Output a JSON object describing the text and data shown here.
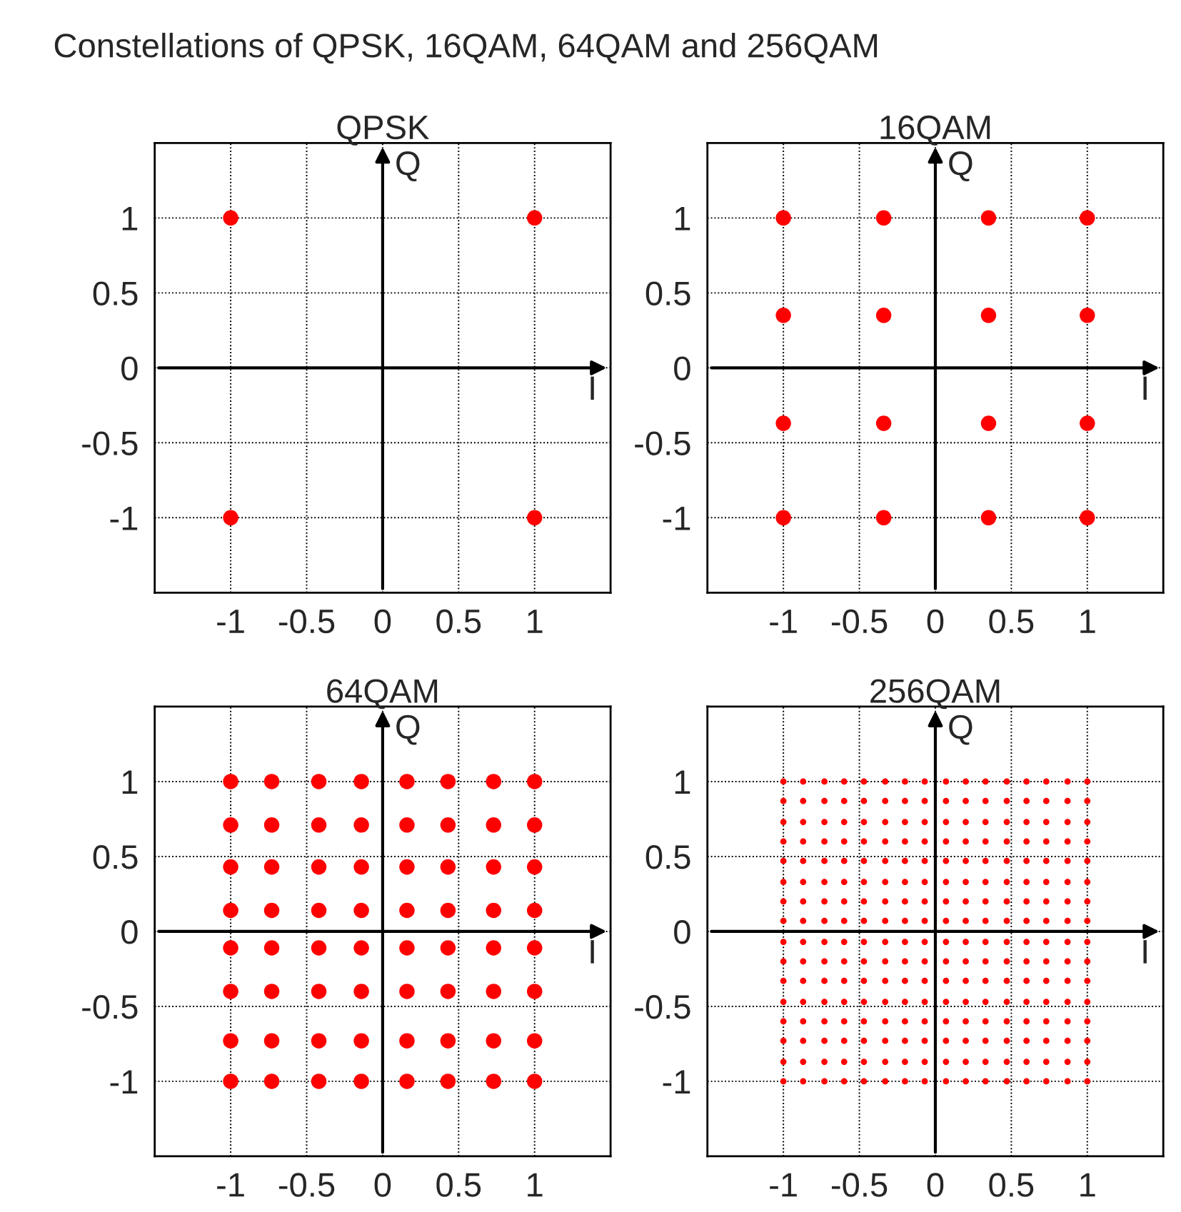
{
  "chart_data": [
    {
      "type": "scatter",
      "title": "QPSK",
      "xlabel": "I",
      "ylabel": "Q",
      "annotations": [
        "Constellations of QPSK, 16QAM, 64QAM and 256QAM"
      ],
      "xlim": [
        -1.5,
        1.5
      ],
      "ylim": [
        -1.5,
        1.5
      ],
      "xticks": [
        -1,
        -0.5,
        0,
        0.5,
        1
      ],
      "yticks": [
        -1,
        -0.5,
        0,
        0.5,
        1
      ],
      "grid": true,
      "marker": "circle",
      "series": [
        {
          "color": "#ff0000",
          "x": [
            -1,
            1,
            -1,
            1
          ],
          "values": [
            1,
            1,
            -1,
            -1
          ]
        }
      ]
    },
    {
      "type": "scatter",
      "title": "16QAM",
      "xlabel": "I",
      "ylabel": "Q",
      "xlim": [
        -1.5,
        1.5
      ],
      "ylim": [
        -1.5,
        1.5
      ],
      "xticks": [
        -1,
        -0.5,
        0,
        0.5,
        1
      ],
      "yticks": [
        -1,
        -0.5,
        0,
        0.5,
        1
      ],
      "grid": true,
      "marker": "circle",
      "series": [
        {
          "color": "#ff0000",
          "x": [
            -1,
            -0.34,
            0.35,
            1,
            -1,
            -0.34,
            0.35,
            1,
            -1,
            -0.34,
            0.35,
            1,
            -1,
            -0.34,
            0.35,
            1
          ],
          "values": [
            1,
            1,
            1,
            1,
            0.35,
            0.35,
            0.35,
            0.35,
            -0.37,
            -0.37,
            -0.37,
            -0.37,
            -1,
            -1,
            -1,
            -1
          ]
        }
      ]
    },
    {
      "type": "scatter",
      "title": "64QAM",
      "xlabel": "I",
      "ylabel": "Q",
      "xlim": [
        -1.5,
        1.5
      ],
      "ylim": [
        -1.5,
        1.5
      ],
      "xticks": [
        -1,
        -0.5,
        0,
        0.5,
        1
      ],
      "yticks": [
        -1,
        -0.5,
        0,
        0.5,
        1
      ],
      "grid": true,
      "marker": "circle",
      "series": [
        {
          "color": "#ff0000",
          "x": [
            -1,
            -0.73,
            -0.42,
            -0.14,
            0.16,
            0.43,
            0.73,
            1
          ],
          "values": [
            1,
            1,
            1,
            1,
            1,
            1,
            1,
            1
          ]
        },
        {
          "color": "#ff0000",
          "x": [
            -1,
            -0.73,
            -0.42,
            -0.14,
            0.16,
            0.43,
            0.73,
            1
          ],
          "values": [
            0.71,
            0.71,
            0.71,
            0.71,
            0.71,
            0.71,
            0.71,
            0.71
          ]
        },
        {
          "color": "#ff0000",
          "x": [
            -1,
            -0.73,
            -0.42,
            -0.14,
            0.16,
            0.43,
            0.73,
            1
          ],
          "values": [
            0.43,
            0.43,
            0.43,
            0.43,
            0.43,
            0.43,
            0.43,
            0.43
          ]
        },
        {
          "color": "#ff0000",
          "x": [
            -1,
            -0.73,
            -0.42,
            -0.14,
            0.16,
            0.43,
            0.73,
            1
          ],
          "values": [
            0.14,
            0.14,
            0.14,
            0.14,
            0.14,
            0.14,
            0.14,
            0.14
          ]
        },
        {
          "color": "#ff0000",
          "x": [
            -1,
            -0.73,
            -0.42,
            -0.14,
            0.16,
            0.43,
            0.73,
            1
          ],
          "values": [
            -0.11,
            -0.11,
            -0.11,
            -0.11,
            -0.11,
            -0.11,
            -0.11,
            -0.11
          ]
        },
        {
          "color": "#ff0000",
          "x": [
            -1,
            -0.73,
            -0.42,
            -0.14,
            0.16,
            0.43,
            0.73,
            1
          ],
          "values": [
            -0.4,
            -0.4,
            -0.4,
            -0.4,
            -0.4,
            -0.4,
            -0.4,
            -0.4
          ]
        },
        {
          "color": "#ff0000",
          "x": [
            -1,
            -0.73,
            -0.42,
            -0.14,
            0.16,
            0.43,
            0.73,
            1
          ],
          "values": [
            -0.73,
            -0.73,
            -0.73,
            -0.73,
            -0.73,
            -0.73,
            -0.73,
            -0.73
          ]
        },
        {
          "color": "#ff0000",
          "x": [
            -1,
            -0.73,
            -0.42,
            -0.14,
            0.16,
            0.43,
            0.73,
            1
          ],
          "values": [
            -1,
            -1,
            -1,
            -1,
            -1,
            -1,
            -1,
            -1
          ]
        }
      ]
    },
    {
      "type": "scatter",
      "title": "256QAM",
      "xlabel": "I",
      "ylabel": "Q",
      "xlim": [
        -1.5,
        1.5
      ],
      "ylim": [
        -1.5,
        1.5
      ],
      "xticks": [
        -1,
        -0.5,
        0,
        0.5,
        1
      ],
      "yticks": [
        -1,
        -0.5,
        0,
        0.5,
        1
      ],
      "grid": true,
      "marker": "circle",
      "series": [
        {
          "color": "#ff0000",
          "x": [
            -1,
            -0.87,
            -0.73,
            -0.6,
            -0.47,
            -0.33,
            -0.2,
            -0.07,
            0.07,
            0.2,
            0.33,
            0.47,
            0.6,
            0.73,
            0.87,
            1
          ],
          "values": [
            1,
            1,
            1,
            1,
            1,
            1,
            1,
            1,
            1,
            1,
            1,
            1,
            1,
            1,
            1,
            1
          ]
        },
        {
          "color": "#ff0000",
          "x": [
            -1,
            -0.87,
            -0.73,
            -0.6,
            -0.47,
            -0.33,
            -0.2,
            -0.07,
            0.07,
            0.2,
            0.33,
            0.47,
            0.6,
            0.73,
            0.87,
            1
          ],
          "values": [
            0.87,
            0.87,
            0.87,
            0.87,
            0.87,
            0.87,
            0.87,
            0.87,
            0.87,
            0.87,
            0.87,
            0.87,
            0.87,
            0.87,
            0.87,
            0.87
          ]
        },
        {
          "color": "#ff0000",
          "x": [
            -1,
            -0.87,
            -0.73,
            -0.6,
            -0.47,
            -0.33,
            -0.2,
            -0.07,
            0.07,
            0.2,
            0.33,
            0.47,
            0.6,
            0.73,
            0.87,
            1
          ],
          "values": [
            0.73,
            0.73,
            0.73,
            0.73,
            0.73,
            0.73,
            0.73,
            0.73,
            0.73,
            0.73,
            0.73,
            0.73,
            0.73,
            0.73,
            0.73,
            0.73
          ]
        },
        {
          "color": "#ff0000",
          "x": [
            -1,
            -0.87,
            -0.73,
            -0.6,
            -0.47,
            -0.33,
            -0.2,
            -0.07,
            0.07,
            0.2,
            0.33,
            0.47,
            0.6,
            0.73,
            0.87,
            1
          ],
          "values": [
            0.6,
            0.6,
            0.6,
            0.6,
            0.6,
            0.6,
            0.6,
            0.6,
            0.6,
            0.6,
            0.6,
            0.6,
            0.6,
            0.6,
            0.6,
            0.6
          ]
        },
        {
          "color": "#ff0000",
          "x": [
            -1,
            -0.87,
            -0.73,
            -0.6,
            -0.47,
            -0.33,
            -0.2,
            -0.07,
            0.07,
            0.2,
            0.33,
            0.47,
            0.6,
            0.73,
            0.87,
            1
          ],
          "values": [
            0.47,
            0.47,
            0.47,
            0.47,
            0.47,
            0.47,
            0.47,
            0.47,
            0.47,
            0.47,
            0.47,
            0.47,
            0.47,
            0.47,
            0.47,
            0.47
          ]
        },
        {
          "color": "#ff0000",
          "x": [
            -1,
            -0.87,
            -0.73,
            -0.6,
            -0.47,
            -0.33,
            -0.2,
            -0.07,
            0.07,
            0.2,
            0.33,
            0.47,
            0.6,
            0.73,
            0.87,
            1
          ],
          "values": [
            0.33,
            0.33,
            0.33,
            0.33,
            0.33,
            0.33,
            0.33,
            0.33,
            0.33,
            0.33,
            0.33,
            0.33,
            0.33,
            0.33,
            0.33,
            0.33
          ]
        },
        {
          "color": "#ff0000",
          "x": [
            -1,
            -0.87,
            -0.73,
            -0.6,
            -0.47,
            -0.33,
            -0.2,
            -0.07,
            0.07,
            0.2,
            0.33,
            0.47,
            0.6,
            0.73,
            0.87,
            1
          ],
          "values": [
            0.2,
            0.2,
            0.2,
            0.2,
            0.2,
            0.2,
            0.2,
            0.2,
            0.2,
            0.2,
            0.2,
            0.2,
            0.2,
            0.2,
            0.2,
            0.2
          ]
        },
        {
          "color": "#ff0000",
          "x": [
            -1,
            -0.87,
            -0.73,
            -0.6,
            -0.47,
            -0.33,
            -0.2,
            -0.07,
            0.07,
            0.2,
            0.33,
            0.47,
            0.6,
            0.73,
            0.87,
            1
          ],
          "values": [
            0.07,
            0.07,
            0.07,
            0.07,
            0.07,
            0.07,
            0.07,
            0.07,
            0.07,
            0.07,
            0.07,
            0.07,
            0.07,
            0.07,
            0.07,
            0.07
          ]
        },
        {
          "color": "#ff0000",
          "x": [
            -1,
            -0.87,
            -0.73,
            -0.6,
            -0.47,
            -0.33,
            -0.2,
            -0.07,
            0.07,
            0.2,
            0.33,
            0.47,
            0.6,
            0.73,
            0.87,
            1
          ],
          "values": [
            -0.07,
            -0.07,
            -0.07,
            -0.07,
            -0.07,
            -0.07,
            -0.07,
            -0.07,
            -0.07,
            -0.07,
            -0.07,
            -0.07,
            -0.07,
            -0.07,
            -0.07,
            -0.07
          ]
        },
        {
          "color": "#ff0000",
          "x": [
            -1,
            -0.87,
            -0.73,
            -0.6,
            -0.47,
            -0.33,
            -0.2,
            -0.07,
            0.07,
            0.2,
            0.33,
            0.47,
            0.6,
            0.73,
            0.87,
            1
          ],
          "values": [
            -0.2,
            -0.2,
            -0.2,
            -0.2,
            -0.2,
            -0.2,
            -0.2,
            -0.2,
            -0.2,
            -0.2,
            -0.2,
            -0.2,
            -0.2,
            -0.2,
            -0.2,
            -0.2
          ]
        },
        {
          "color": "#ff0000",
          "x": [
            -1,
            -0.87,
            -0.73,
            -0.6,
            -0.47,
            -0.33,
            -0.2,
            -0.07,
            0.07,
            0.2,
            0.33,
            0.47,
            0.6,
            0.73,
            0.87,
            1
          ],
          "values": [
            -0.33,
            -0.33,
            -0.33,
            -0.33,
            -0.33,
            -0.33,
            -0.33,
            -0.33,
            -0.33,
            -0.33,
            -0.33,
            -0.33,
            -0.33,
            -0.33,
            -0.33,
            -0.33
          ]
        },
        {
          "color": "#ff0000",
          "x": [
            -1,
            -0.87,
            -0.73,
            -0.6,
            -0.47,
            -0.33,
            -0.2,
            -0.07,
            0.07,
            0.2,
            0.33,
            0.47,
            0.6,
            0.73,
            0.87,
            1
          ],
          "values": [
            -0.47,
            -0.47,
            -0.47,
            -0.47,
            -0.47,
            -0.47,
            -0.47,
            -0.47,
            -0.47,
            -0.47,
            -0.47,
            -0.47,
            -0.47,
            -0.47,
            -0.47,
            -0.47
          ]
        },
        {
          "color": "#ff0000",
          "x": [
            -1,
            -0.87,
            -0.73,
            -0.6,
            -0.47,
            -0.33,
            -0.2,
            -0.07,
            0.07,
            0.2,
            0.33,
            0.47,
            0.6,
            0.73,
            0.87,
            1
          ],
          "values": [
            -0.6,
            -0.6,
            -0.6,
            -0.6,
            -0.6,
            -0.6,
            -0.6,
            -0.6,
            -0.6,
            -0.6,
            -0.6,
            -0.6,
            -0.6,
            -0.6,
            -0.6,
            -0.6
          ]
        },
        {
          "color": "#ff0000",
          "x": [
            -1,
            -0.87,
            -0.73,
            -0.6,
            -0.47,
            -0.33,
            -0.2,
            -0.07,
            0.07,
            0.2,
            0.33,
            0.47,
            0.6,
            0.73,
            0.87,
            1
          ],
          "values": [
            -0.73,
            -0.73,
            -0.73,
            -0.73,
            -0.73,
            -0.73,
            -0.73,
            -0.73,
            -0.73,
            -0.73,
            -0.73,
            -0.73,
            -0.73,
            -0.73,
            -0.73,
            -0.73
          ]
        },
        {
          "color": "#ff0000",
          "x": [
            -1,
            -0.87,
            -0.73,
            -0.6,
            -0.47,
            -0.33,
            -0.2,
            -0.07,
            0.07,
            0.2,
            0.33,
            0.47,
            0.6,
            0.73,
            0.87,
            1
          ],
          "values": [
            -0.87,
            -0.87,
            -0.87,
            -0.87,
            -0.87,
            -0.87,
            -0.87,
            -0.87,
            -0.87,
            -0.87,
            -0.87,
            -0.87,
            -0.87,
            -0.87,
            -0.87,
            -0.87
          ]
        },
        {
          "color": "#ff0000",
          "x": [
            -1,
            -0.87,
            -0.73,
            -0.6,
            -0.47,
            -0.33,
            -0.2,
            -0.07,
            0.07,
            0.2,
            0.33,
            0.47,
            0.6,
            0.73,
            0.87,
            1
          ],
          "values": [
            -1,
            -1,
            -1,
            -1,
            -1,
            -1,
            -1,
            -1,
            -1,
            -1,
            -1,
            -1,
            -1,
            -1,
            -1,
            -1
          ]
        }
      ]
    }
  ]
}
